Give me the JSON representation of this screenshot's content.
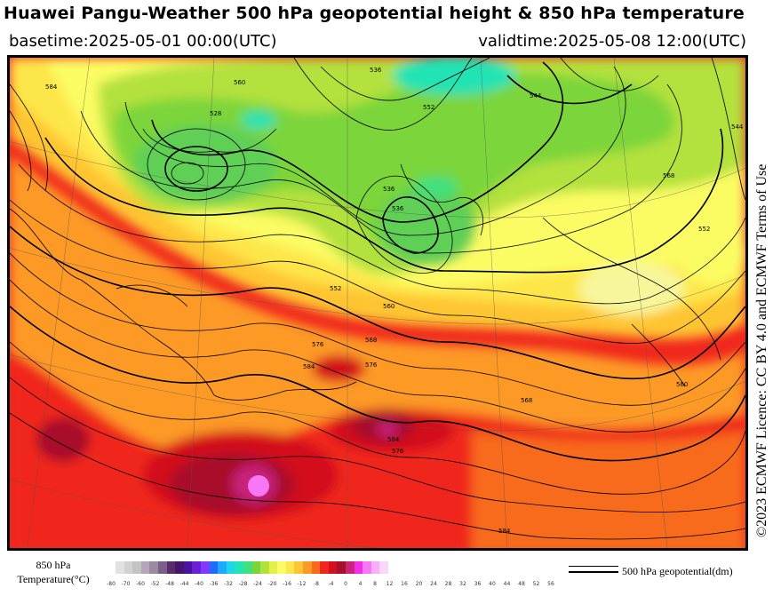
{
  "title": "Huawei Pangu-Weather 500 hPa geopotential height & 850 hPa temperature",
  "basetime": "basetime:2025-05-01 00:00(UTC)",
  "validtime": "validtime:2025-05-08 12:00(UTC)",
  "licence": "©2023 ECMWF Licence: CC BY 4.0 and ECMWF Terms of Use",
  "legend": {
    "temp_line1": "850 hPa",
    "temp_line2": "Temperature(°C)",
    "geo_label": "500 hPa geopotential(dm)",
    "ticks": [
      "-80",
      "-70",
      "-60",
      "-52",
      "-48",
      "-44",
      "-40",
      "-36",
      "-32",
      "-28",
      "-24",
      "-20",
      "-16",
      "-12",
      "-8",
      "-4",
      "0",
      "4",
      "8",
      "12",
      "16",
      "20",
      "24",
      "28",
      "32",
      "36",
      "40",
      "44",
      "48",
      "52",
      "56"
    ],
    "colors": [
      "#e2e2e2",
      "#d2d2d2",
      "#c3c3c3",
      "#b2a6b8",
      "#9c8aa3",
      "#7a5f86",
      "#5a2a6e",
      "#45156a",
      "#4b10a0",
      "#6a1fd6",
      "#7f3bff",
      "#1f6bff",
      "#1ea9ff",
      "#1cd6ea",
      "#22e3b4",
      "#3fe07e",
      "#7bd53a",
      "#b3e13c",
      "#e3f04a",
      "#fbfc63",
      "#fde64a",
      "#fec533",
      "#fd9a26",
      "#f86b1a",
      "#f0271d",
      "#d3111e",
      "#a8102a",
      "#c8247a",
      "#f22ee9",
      "#f777f5",
      "#f9aff7",
      "#fad6fa"
    ]
  },
  "map": {
    "contour_labels": [
      "560",
      "536",
      "544",
      "552",
      "528",
      "536",
      "536",
      "552",
      "560",
      "568",
      "576",
      "584",
      "576",
      "568",
      "560",
      "552",
      "544",
      "568",
      "584",
      "576",
      "584",
      "584"
    ]
  }
}
